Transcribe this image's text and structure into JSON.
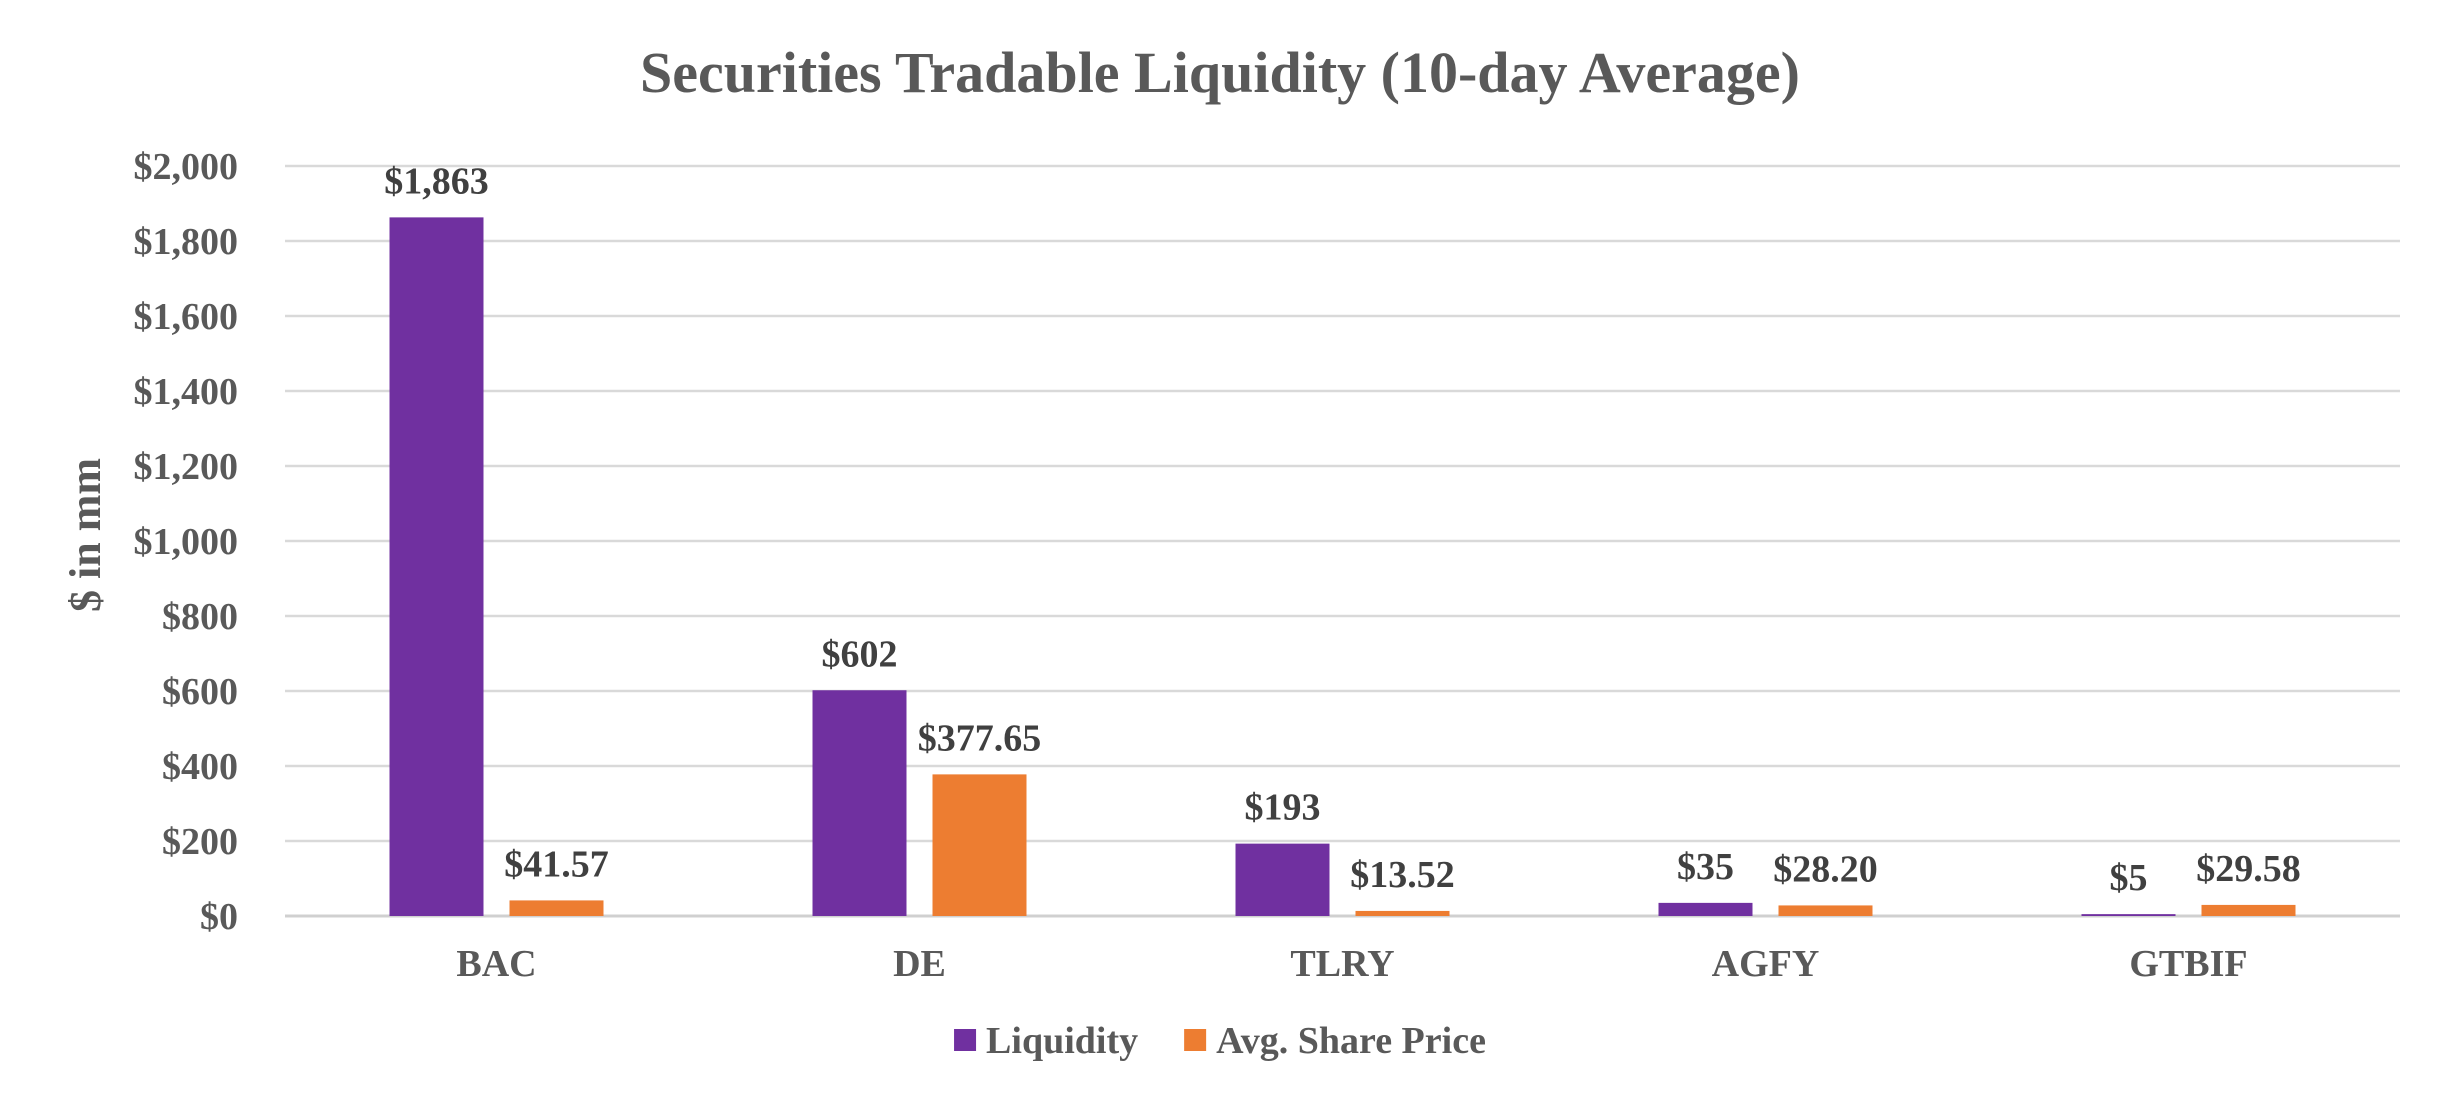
{
  "chart_data": {
    "type": "bar",
    "title": "Securities Tradable Liquidity (10-day Average)",
    "xlabel": "",
    "ylabel": "$ in mm",
    "ylim": [
      0,
      2000
    ],
    "yticks": [
      0,
      200,
      400,
      600,
      800,
      1000,
      1200,
      1400,
      1600,
      1800,
      2000
    ],
    "ytick_labels": [
      "$0",
      "$200",
      "$400",
      "$600",
      "$800",
      "$1,000",
      "$1,200",
      "$1,400",
      "$1,600",
      "$1,800",
      "$2,000"
    ],
    "categories": [
      "BAC",
      "DE",
      "TLRY",
      "AGFY",
      "GTBIF"
    ],
    "grid": true,
    "legend_position": "bottom",
    "series": [
      {
        "name": "Liquidity",
        "color": "#7030a0",
        "values": [
          1863,
          602,
          193,
          35,
          5
        ],
        "labels": [
          "$1,863",
          "$602",
          "$193",
          "$35",
          "$5"
        ]
      },
      {
        "name": "Avg. Share Price",
        "color": "#ed7d31",
        "values": [
          41.57,
          377.65,
          13.52,
          28.2,
          29.58
        ],
        "labels": [
          "$41.57",
          "$377.65",
          "$13.52",
          "$28.20",
          "$29.58"
        ]
      }
    ]
  }
}
